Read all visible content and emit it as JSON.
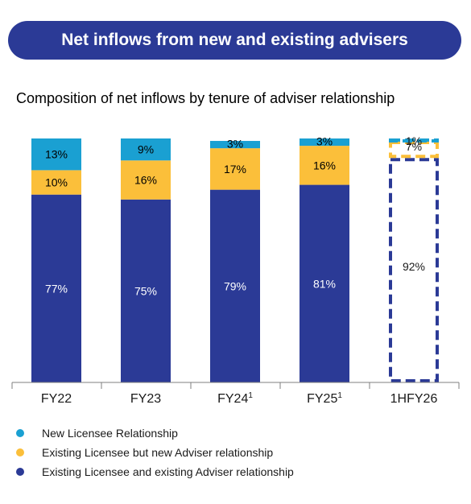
{
  "banner": {
    "title": "Net inflows from new and existing advisers"
  },
  "chart_data": {
    "type": "bar",
    "stacked": true,
    "subtitle": "Composition of net inflows by tenure of adviser relationship",
    "categories": [
      "FY22",
      "FY23",
      "FY24",
      "FY25",
      "1HFY26"
    ],
    "category_superscripts": [
      "",
      "",
      "1",
      "1",
      ""
    ],
    "series": [
      {
        "name": "Existing Licensee and existing Adviser relationship",
        "values": [
          77,
          75,
          79,
          81,
          92
        ],
        "labels": [
          "77%",
          "75%",
          "79%",
          "81%",
          "92%"
        ],
        "color": "#2b3a96"
      },
      {
        "name": "Existing Licensee but new Adviser relationship",
        "values": [
          10,
          16,
          17,
          16,
          7
        ],
        "labels": [
          "10%",
          "16%",
          "17%",
          "16%",
          "7%"
        ],
        "color": "#fbbf3a"
      },
      {
        "name": "New Licensee Relationship",
        "values": [
          13,
          9,
          3,
          3,
          1
        ],
        "labels": [
          "13%",
          "9%",
          "3%",
          "3%",
          "1%"
        ],
        "color": "#1aa0d2"
      }
    ],
    "dashed_categories": [
      "1HFY26"
    ],
    "ylim": [
      0,
      100
    ],
    "legend_position": "bottom-left"
  }
}
